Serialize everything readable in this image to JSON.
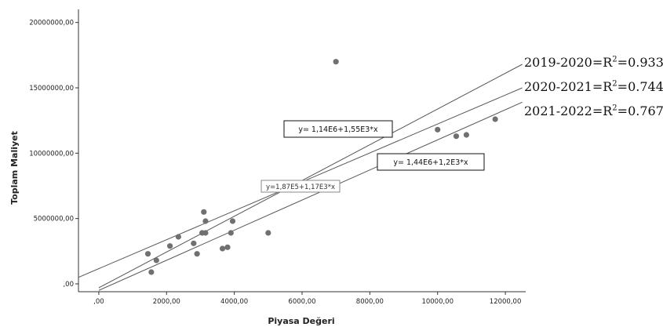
{
  "chart_data": {
    "type": "scatter",
    "xlabel": "Piyasa Değeri",
    "ylabel": "Toplam Maliyet",
    "xlim": [
      -600,
      12600
    ],
    "ylim": [
      -600000,
      21000000
    ],
    "x_ticks": [
      0,
      2000,
      4000,
      6000,
      8000,
      10000,
      12000
    ],
    "x_tick_labels": [
      ",00",
      "2000,00",
      "4000,00",
      "6000,00",
      "8000,00",
      "10000,00",
      "12000,00"
    ],
    "y_ticks": [
      0,
      5000000,
      10000000,
      15000000,
      20000000
    ],
    "y_tick_labels": [
      ",00",
      "5000000,00",
      "10000000,00",
      "15000000,00",
      "20000000,00"
    ],
    "points": [
      {
        "x": 1450,
        "y": 2300000
      },
      {
        "x": 1550,
        "y": 900000
      },
      {
        "x": 1700,
        "y": 1800000
      },
      {
        "x": 2100,
        "y": 2900000
      },
      {
        "x": 2350,
        "y": 3600000
      },
      {
        "x": 2800,
        "y": 3100000
      },
      {
        "x": 2900,
        "y": 2300000
      },
      {
        "x": 3050,
        "y": 3900000
      },
      {
        "x": 3100,
        "y": 5500000
      },
      {
        "x": 3150,
        "y": 4800000
      },
      {
        "x": 3150,
        "y": 3900000
      },
      {
        "x": 3650,
        "y": 2700000
      },
      {
        "x": 3800,
        "y": 2800000
      },
      {
        "x": 3900,
        "y": 3900000
      },
      {
        "x": 3950,
        "y": 4800000
      },
      {
        "x": 5000,
        "y": 3900000
      },
      {
        "x": 7000,
        "y": 17000000
      },
      {
        "x": 10000,
        "y": 11800000
      },
      {
        "x": 10550,
        "y": 11300000
      },
      {
        "x": 10850,
        "y": 11400000
      },
      {
        "x": 11700,
        "y": 12600000
      }
    ],
    "fit_lines": [
      {
        "x0": 0,
        "y0": -300000,
        "x1": 12500,
        "y1": 16800000
      },
      {
        "x0": -600,
        "y0": 500000,
        "x1": 12500,
        "y1": 15000000
      },
      {
        "x0": 0,
        "y0": -500000,
        "x1": 12500,
        "y1": 13900000
      }
    ],
    "annotations": [
      {
        "text": "y= 1,14E6+1,55E3*x",
        "style": "boxed"
      },
      {
        "text": "y= 1,44E6+1,2E3*x",
        "style": "boxed"
      },
      {
        "text": "y=1,87E5+1,17E3*x",
        "style": "light"
      }
    ],
    "r2_labels": [
      {
        "period": "2019-2020=R",
        "sup": "2",
        "value": "=0.933"
      },
      {
        "period": "2020-2021=R",
        "sup": "2",
        "value": "=0.744"
      },
      {
        "period": "2021-2022=R",
        "sup": "2",
        "value": "=0.767"
      }
    ],
    "colors": {
      "point": "#707070",
      "line": "#555555",
      "axis": "#333333"
    }
  }
}
